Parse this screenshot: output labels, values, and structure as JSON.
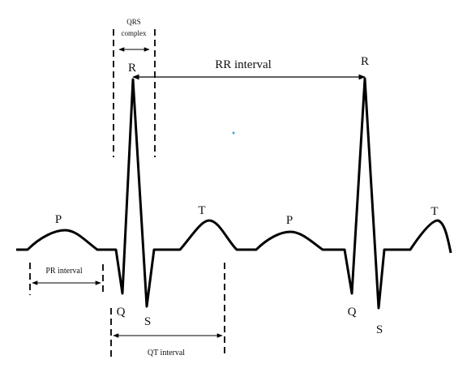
{
  "labels": {
    "qrs_line1": "QRS",
    "qrs_line2": "complex",
    "rr_interval": "RR interval",
    "pr_interval": "PR interval",
    "qt_interval": "QT interval",
    "p1": "P",
    "r1": "R",
    "q1": "Q",
    "s1": "S",
    "t1": "T",
    "p2": "P",
    "r2": "R",
    "q2": "Q",
    "s2": "S",
    "t2": "T"
  },
  "colors": {
    "trace": "#000000",
    "dot": "#4aa3d8"
  }
}
